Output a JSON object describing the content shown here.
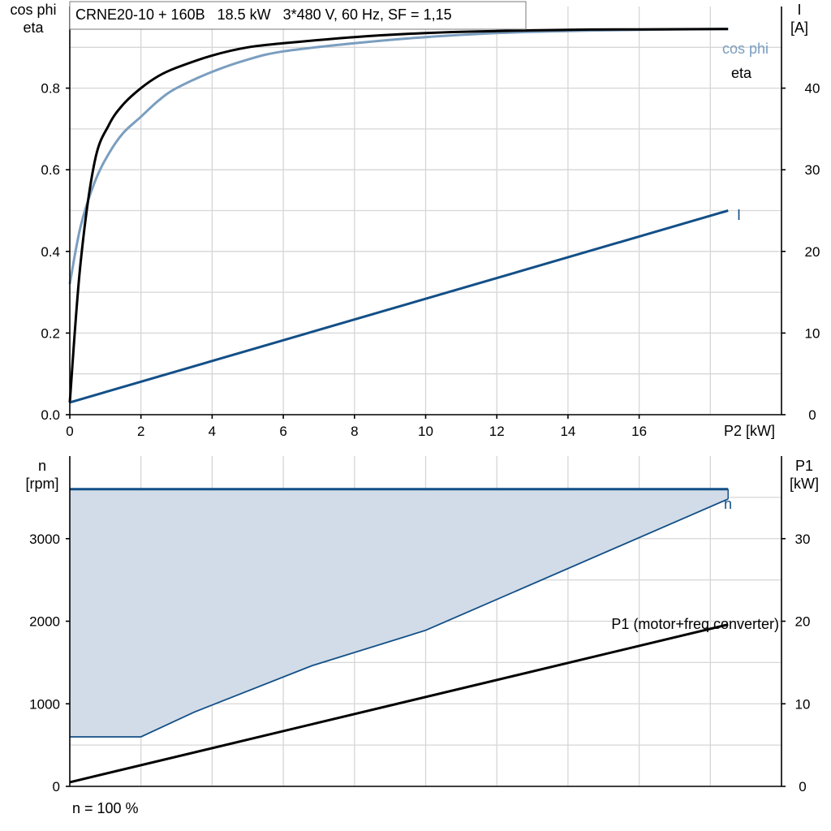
{
  "chart_data": [
    {
      "type": "line",
      "title": "CRNE20-10 + 160B   18.5 kW   3*480 V, 60 Hz, SF = 1,15",
      "xlabel": "P2 [kW]",
      "ylabel": [
        "cos phi",
        "eta"
      ],
      "ylabel_right": [
        "I",
        "[A]"
      ],
      "xlim": [
        0,
        20
      ],
      "ylim": [
        0,
        1.0
      ],
      "ylim_right": [
        0,
        50
      ],
      "x_ticks": [
        0,
        2,
        4,
        6,
        8,
        10,
        12,
        14,
        16
      ],
      "y_ticks": [
        "0.0",
        "0.2",
        "0.4",
        "0.6",
        "0.8"
      ],
      "y_ticks_right": [
        0,
        10,
        20,
        30,
        40
      ],
      "grid": true,
      "series": [
        {
          "name": "eta",
          "axis": "left",
          "color": "#000000",
          "x": [
            0,
            0.3,
            0.7,
            1.1,
            1.5,
            2.0,
            2.5,
            3.0,
            4.0,
            5.0,
            6.0,
            8.0,
            10.0,
            12.0,
            14.0,
            16.0,
            18.5
          ],
          "y": [
            0.03,
            0.37,
            0.62,
            0.71,
            0.76,
            0.8,
            0.83,
            0.85,
            0.88,
            0.9,
            0.91,
            0.925,
            0.935,
            0.94,
            0.943,
            0.944,
            0.945
          ]
        },
        {
          "name": "cos phi",
          "axis": "left",
          "color": "#7a9ec0",
          "x": [
            0,
            0.3,
            0.7,
            1.1,
            1.5,
            2.0,
            2.5,
            3.0,
            4.0,
            5.0,
            6.0,
            8.0,
            10.0,
            12.0,
            14.0,
            16.0,
            18.5
          ],
          "y": [
            0.32,
            0.46,
            0.57,
            0.64,
            0.69,
            0.73,
            0.77,
            0.8,
            0.84,
            0.87,
            0.89,
            0.91,
            0.925,
            0.935,
            0.94,
            0.943,
            0.945
          ]
        },
        {
          "name": "I",
          "axis": "right",
          "color": "#134f87",
          "x": [
            0,
            18.5
          ],
          "y": [
            1.5,
            25
          ]
        }
      ]
    },
    {
      "type": "area",
      "xlabel": "",
      "ylabel": [
        "n",
        "[rpm]"
      ],
      "ylabel_right": [
        "P1",
        "[kW]"
      ],
      "xlim": [
        0,
        20
      ],
      "ylim": [
        0,
        4000
      ],
      "ylim_right": [
        0,
        40
      ],
      "y_ticks": [
        0,
        1000,
        2000,
        3000
      ],
      "y_ticks_right": [
        0,
        10,
        20,
        30
      ],
      "grid": true,
      "footnote": "n = 100 %",
      "series": [
        {
          "name": "n",
          "axis": "left",
          "color": "#134f87",
          "x": [
            0,
            18.5
          ],
          "y": [
            3600,
            3600
          ]
        },
        {
          "name": "",
          "axis": "left",
          "color": "#134f87",
          "fill": "#d1dce8",
          "x": [
            0,
            2.0,
            3.5,
            6.8,
            10.0,
            18.5
          ],
          "y": [
            600,
            600,
            900,
            1460,
            1890,
            3480
          ]
        },
        {
          "name": "P1 (motor+freq.converter)",
          "axis": "right",
          "color": "#000000",
          "x": [
            0,
            18.5
          ],
          "y": [
            0.5,
            19.6
          ]
        }
      ]
    }
  ]
}
